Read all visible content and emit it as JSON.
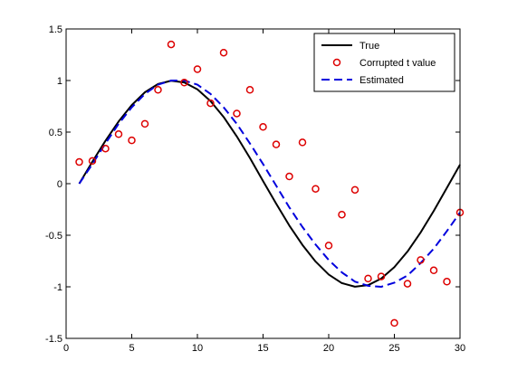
{
  "chart_data": {
    "type": "line",
    "title": "",
    "xlabel": "",
    "ylabel": "",
    "xlim": [
      0,
      30
    ],
    "ylim": [
      -1.5,
      1.5
    ],
    "xticks": [
      0,
      5,
      10,
      15,
      20,
      25,
      30
    ],
    "yticks": [
      -1.5,
      -1,
      -0.5,
      0,
      0.5,
      1,
      1.5
    ],
    "x": [
      1,
      2,
      3,
      4,
      5,
      6,
      7,
      8,
      9,
      10,
      11,
      12,
      13,
      14,
      15,
      16,
      17,
      18,
      19,
      20,
      21,
      22,
      23,
      24,
      25,
      26,
      27,
      28,
      29,
      30
    ],
    "grid": false,
    "legend_position": "top-right",
    "series": [
      {
        "name": "True",
        "style": "solid-line",
        "color": "#000000",
        "values": [
          0.0,
          0.213,
          0.416,
          0.603,
          0.762,
          0.886,
          0.966,
          0.998,
          0.981,
          0.914,
          0.8,
          0.646,
          0.458,
          0.249,
          0.025,
          -0.194,
          -0.406,
          -0.594,
          -0.755,
          -0.881,
          -0.964,
          -0.999,
          -0.984,
          -0.92,
          -0.809,
          -0.658,
          -0.473,
          -0.264,
          -0.041,
          0.184
        ]
      },
      {
        "name": "Corrupted t value",
        "style": "circle-markers",
        "color": "#dd0000",
        "values": [
          0.21,
          0.22,
          0.34,
          0.48,
          0.42,
          0.58,
          0.91,
          1.35,
          0.98,
          1.11,
          0.78,
          1.27,
          0.68,
          0.91,
          0.55,
          0.38,
          0.07,
          0.4,
          -0.05,
          -0.6,
          -0.3,
          -0.06,
          -0.92,
          -0.9,
          -1.35,
          -0.97,
          -0.74,
          -0.84,
          -0.95,
          -0.28
        ]
      },
      {
        "name": "Estimated",
        "style": "dashed-line",
        "color": "#0000dd",
        "values": [
          0.0,
          0.19,
          0.39,
          0.58,
          0.74,
          0.87,
          0.96,
          1.0,
          1.0,
          0.96,
          0.87,
          0.74,
          0.58,
          0.39,
          0.19,
          -0.02,
          -0.23,
          -0.42,
          -0.59,
          -0.74,
          -0.86,
          -0.95,
          -0.99,
          -1.0,
          -0.96,
          -0.89,
          -0.77,
          -0.63,
          -0.46,
          -0.28
        ]
      }
    ]
  },
  "colors": {
    "axis": "#000000",
    "true_line": "#000000",
    "markers": "#dd0000",
    "estimated_line": "#0000dd",
    "background": "#ffffff"
  }
}
